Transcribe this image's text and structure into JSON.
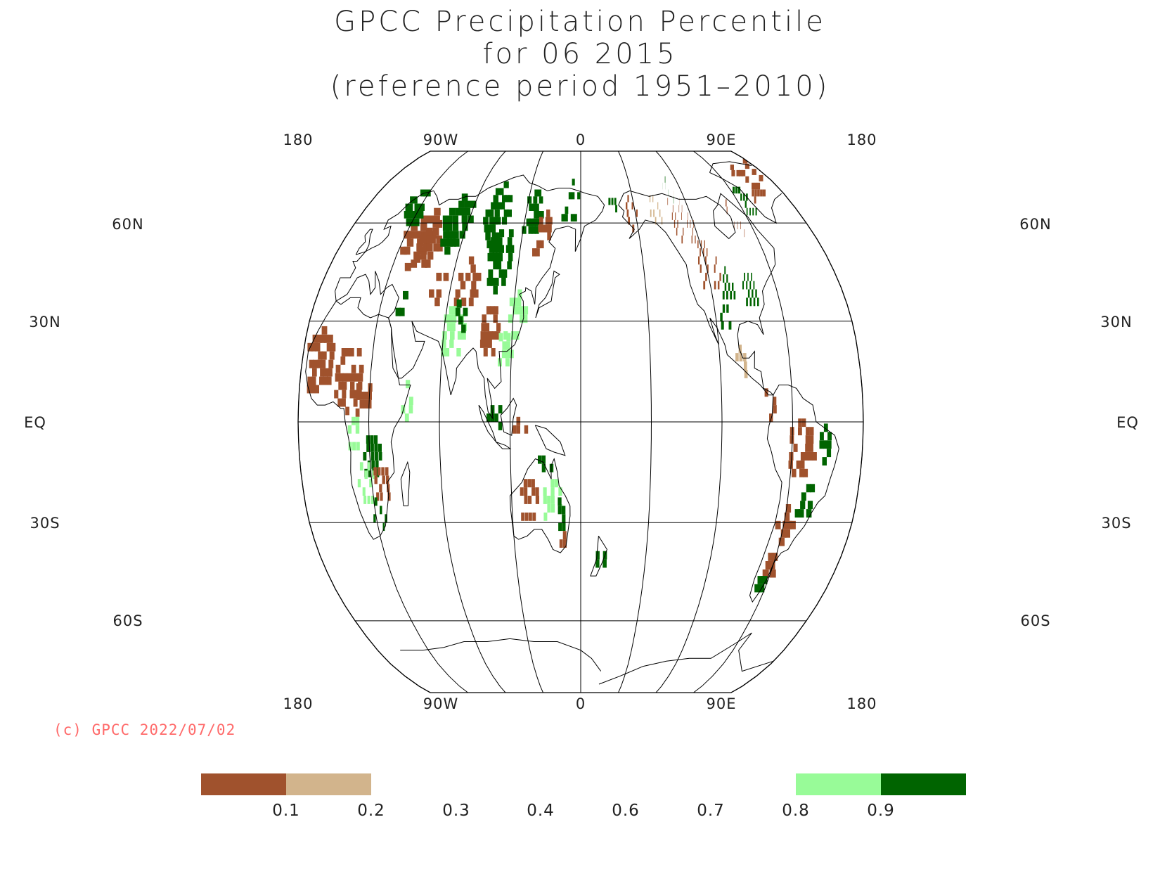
{
  "title": {
    "line1": "GPCC Precipitation Percentile",
    "line2": "for 06 2015",
    "line3": "(reference period 1951–2010)"
  },
  "copyright": "(c) GPCC 2022/07/02",
  "map": {
    "projection": "Robinson",
    "top_lon_labels": [
      "180",
      "90W",
      "0",
      "90E",
      "180"
    ],
    "bottom_lon_labels": [
      "180",
      "90W",
      "0",
      "90E",
      "180"
    ],
    "lat_labels": {
      "60N": "60N",
      "30N": "30N",
      "EQ": "EQ",
      "30S": "30S",
      "60S": "60S"
    },
    "gridline_color": "#000000",
    "coastline_color": "#000000"
  },
  "legend": {
    "ticks": [
      "0.1",
      "0.2",
      "0.3",
      "0.4",
      "0.6",
      "0.7",
      "0.8",
      "0.9"
    ],
    "colors": {
      "very_dry": "#a0522d",
      "dry": "#d2b48c",
      "wet": "#98fb98",
      "very_wet": "#006400"
    }
  },
  "chart_data": {
    "type": "heatmap",
    "title": "GPCC Precipitation Percentile for 06 2015 (reference period 1951–2010)",
    "value_classes": [
      {
        "range": [
          0.0,
          0.1
        ],
        "color": "#a0522d"
      },
      {
        "range": [
          0.1,
          0.2
        ],
        "color": "#d2b48c"
      },
      {
        "range": [
          0.8,
          0.9
        ],
        "color": "#98fb98"
      },
      {
        "range": [
          0.9,
          1.0
        ],
        "color": "#006400"
      }
    ]
  }
}
